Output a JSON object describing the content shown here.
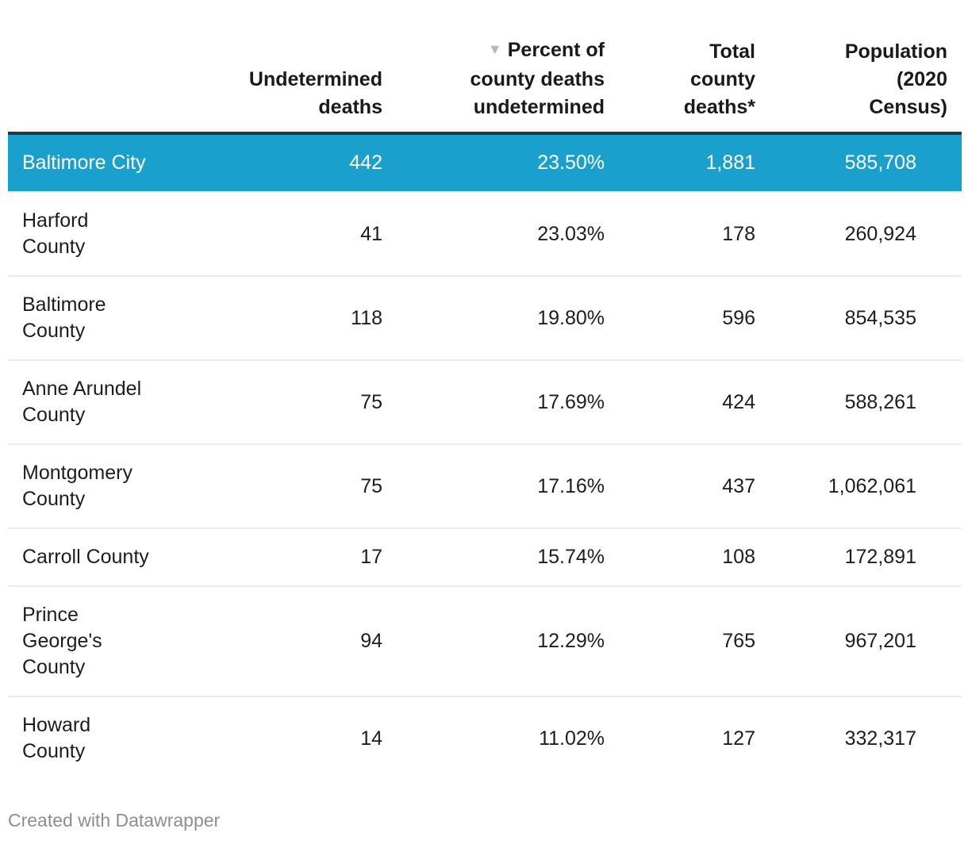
{
  "accent_color": "#1aa0cc",
  "highlight_text_color": "#ffffff",
  "table": {
    "sort_indicator": "▼",
    "sorted_column": "Percent of county deaths undetermined",
    "sort_direction": "descending",
    "columns": [
      {
        "label": ""
      },
      {
        "label": "Undetermined\ndeaths"
      },
      {
        "label": "Percent of\ncounty deaths\nundetermined"
      },
      {
        "label": "Total\ncounty\ndeaths*"
      },
      {
        "label": "Population\n(2020\nCensus)"
      }
    ],
    "rows": [
      {
        "name": "Baltimore City",
        "undetermined_deaths": "442",
        "percent_undetermined": "23.50%",
        "total_deaths": "1,881",
        "population": "585,708"
      },
      {
        "name": "Harford\nCounty",
        "undetermined_deaths": "41",
        "percent_undetermined": "23.03%",
        "total_deaths": "178",
        "population": "260,924"
      },
      {
        "name": "Baltimore\nCounty",
        "undetermined_deaths": "118",
        "percent_undetermined": "19.80%",
        "total_deaths": "596",
        "population": "854,535"
      },
      {
        "name": "Anne Arundel\nCounty",
        "undetermined_deaths": "75",
        "percent_undetermined": "17.69%",
        "total_deaths": "424",
        "population": "588,261"
      },
      {
        "name": "Montgomery\nCounty",
        "undetermined_deaths": "75",
        "percent_undetermined": "17.16%",
        "total_deaths": "437",
        "population": "1,062,061"
      },
      {
        "name": "Carroll County",
        "undetermined_deaths": "17",
        "percent_undetermined": "15.74%",
        "total_deaths": "108",
        "population": "172,891"
      },
      {
        "name": "Prince\nGeorge's\nCounty",
        "undetermined_deaths": "94",
        "percent_undetermined": "12.29%",
        "total_deaths": "765",
        "population": "967,201"
      },
      {
        "name": "Howard\nCounty",
        "undetermined_deaths": "14",
        "percent_undetermined": "11.02%",
        "total_deaths": "127",
        "population": "332,317"
      }
    ]
  },
  "footer": {
    "attribution": "Created with Datawrapper"
  }
}
